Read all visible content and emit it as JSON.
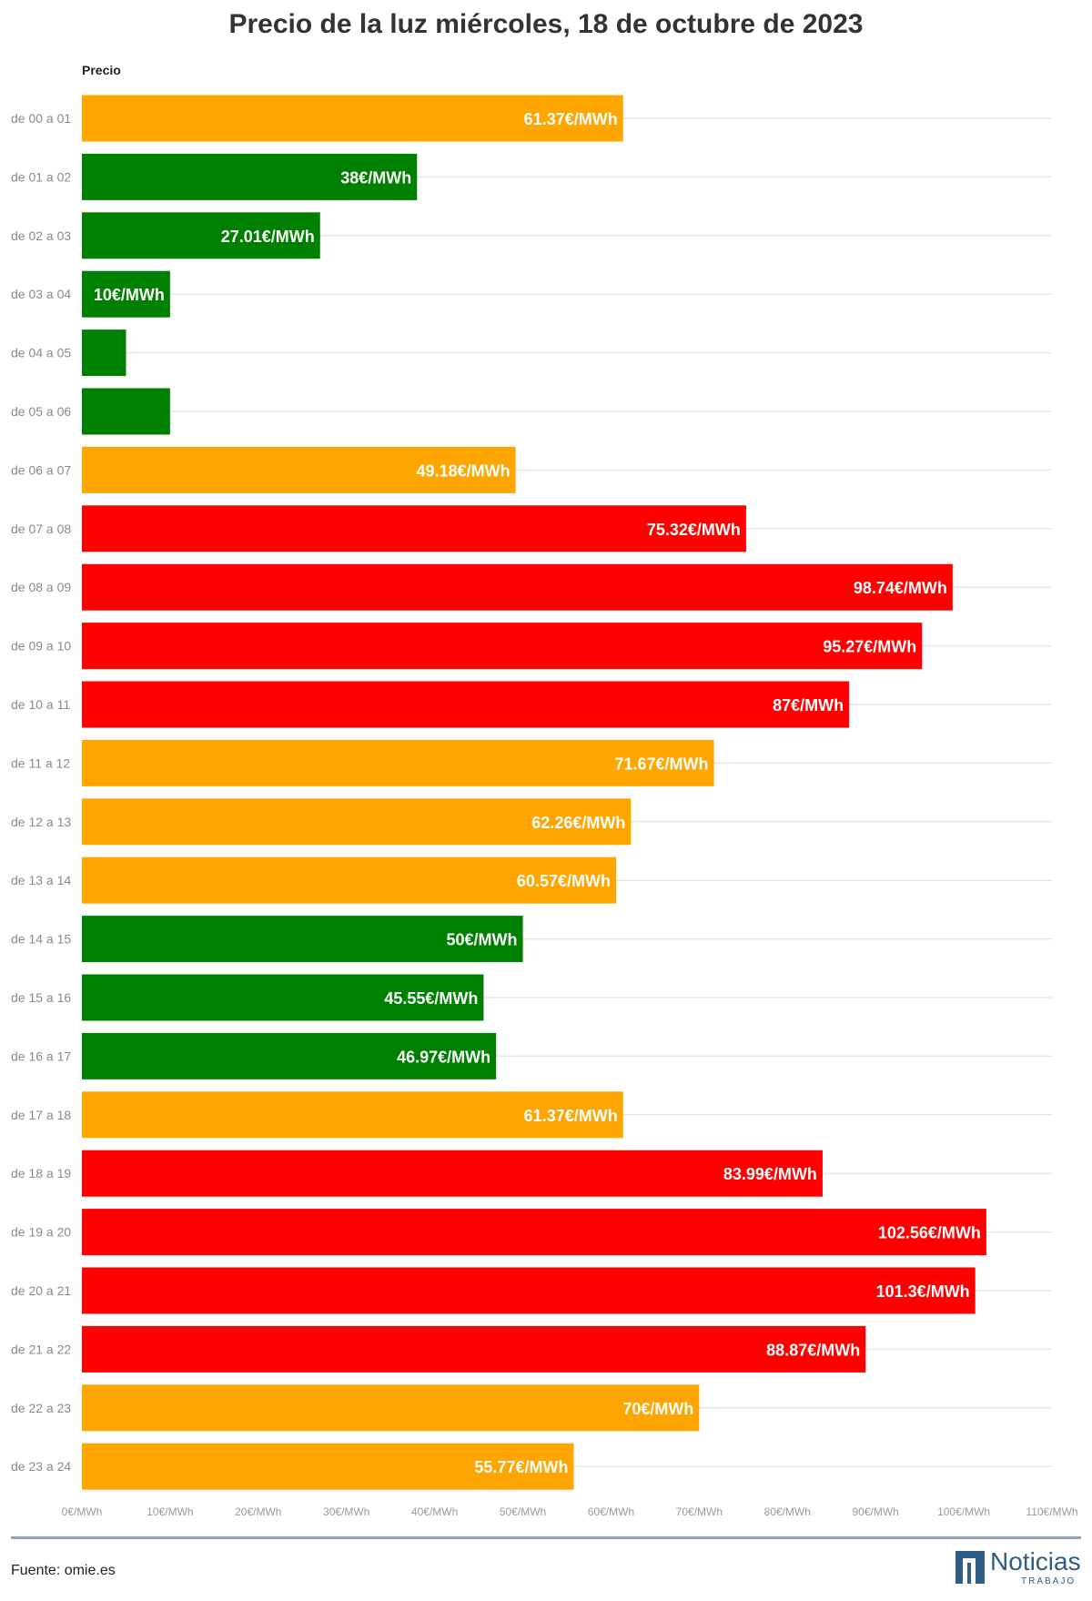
{
  "chart_data": {
    "type": "bar",
    "orientation": "horizontal",
    "title": "Precio de la luz miércoles, 18 de octubre de 2023",
    "series_header": "Precio",
    "categories": [
      "de 00 a 01",
      "de 01 a 02",
      "de 02 a 03",
      "de 03 a 04",
      "de 04 a 05",
      "de 05 a 06",
      "de 06 a 07",
      "de 07 a 08",
      "de 08 a 09",
      "de 09 a 10",
      "de 10 a 11",
      "de 11 a 12",
      "de 12 a 13",
      "de 13 a 14",
      "de 14 a 15",
      "de 15 a 16",
      "de 16 a 17",
      "de 17 a 18",
      "de 18 a 19",
      "de 19 a 20",
      "de 20 a 21",
      "de 21 a 22",
      "de 22 a 23",
      "de 23 a 24"
    ],
    "values": [
      61.37,
      38,
      27.01,
      10,
      5,
      10,
      49.18,
      75.32,
      98.74,
      95.27,
      87,
      71.67,
      62.26,
      60.57,
      50,
      45.55,
      46.97,
      61.37,
      83.99,
      102.56,
      101.3,
      88.87,
      70,
      55.77
    ],
    "data_labels": [
      "61.37€/MWh",
      "38€/MWh",
      "27.01€/MWh",
      "10€/MWh",
      "",
      "",
      "49.18€/MWh",
      "75.32€/MWh",
      "98.74€/MWh",
      "95.27€/MWh",
      "87€/MWh",
      "71.67€/MWh",
      "62.26€/MWh",
      "60.57€/MWh",
      "50€/MWh",
      "45.55€/MWh",
      "46.97€/MWh",
      "61.37€/MWh",
      "83.99€/MWh",
      "102.56€/MWh",
      "101.3€/MWh",
      "88.87€/MWh",
      "70€/MWh",
      "55.77€/MWh"
    ],
    "bar_colors": [
      "#FFA500",
      "#008000",
      "#008000",
      "#008000",
      "#008000",
      "#008000",
      "#FFA500",
      "#FF0000",
      "#FF0000",
      "#FF0000",
      "#FF0000",
      "#FFA500",
      "#FFA500",
      "#FFA500",
      "#008000",
      "#008000",
      "#008000",
      "#FFA500",
      "#FF0000",
      "#FF0000",
      "#FF0000",
      "#FF0000",
      "#FFA500",
      "#FFA500"
    ],
    "xlim": [
      0,
      110
    ],
    "xticks": [
      0,
      10,
      20,
      30,
      40,
      50,
      60,
      70,
      80,
      90,
      100,
      110
    ],
    "xtick_labels": [
      "0€/MWh",
      "10€/MWh",
      "20€/MWh",
      "30€/MWh",
      "40€/MWh",
      "50€/MWh",
      "60€/MWh",
      "70€/MWh",
      "80€/MWh",
      "90€/MWh",
      "100€/MWh",
      "110€/MWh"
    ],
    "grid": true
  },
  "footer": {
    "source": "Fuente: omie.es",
    "logo_name": "Noticias",
    "logo_sub": "TRABAJO"
  }
}
